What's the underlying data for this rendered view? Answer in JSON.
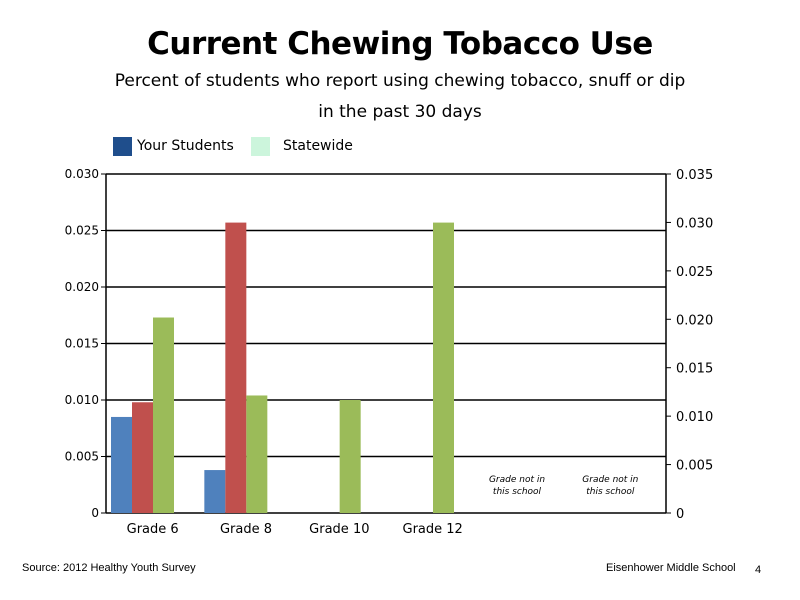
{
  "page": {
    "title": "Current Chewing Tobacco Use",
    "subtitle_line1": "Percent of students who report using chewing tobacco, snuff or dip",
    "subtitle_line2": "in the past 30 days",
    "source": "Source: 2012 Healthy Youth Survey",
    "school": "Eisenhower Middle  School",
    "page_number": "4"
  },
  "legend": [
    {
      "label": "Your Students",
      "color": "#1f4e8c"
    },
    {
      "label": "Statewide",
      "color": "#ccf5dc"
    }
  ],
  "chart_data": {
    "type": "bar",
    "categories": [
      "Grade 6",
      "Grade 8",
      "Grade 10",
      "Grade 12"
    ],
    "series": [
      {
        "values": [
          0.0085,
          0.0038,
          null,
          null
        ],
        "color": "#4f81bd"
      },
      {
        "values": [
          0.0098,
          0.0257,
          null,
          null
        ],
        "color": "#c0504d"
      },
      {
        "values": [
          0.0173,
          0.0104,
          0.01,
          0.0257
        ],
        "color": "#9bbb59"
      }
    ],
    "left_axis": {
      "ylim": [
        0,
        0.03
      ],
      "tick_labels": [
        "0",
        "0.005",
        "0.010",
        "0.015",
        "0.020",
        "0.025",
        "0.030"
      ]
    },
    "right_axis": {
      "ylim": [
        0,
        0.035
      ],
      "tick_labels": [
        "0",
        "0.005",
        "0.010",
        "0.015",
        "0.020",
        "0.025",
        "0.030",
        "0.035"
      ]
    },
    "grid": true,
    "annotations": [
      {
        "line1": "Grade not in",
        "line2": "this school"
      },
      {
        "line1": "Grade not in",
        "line2": "this school"
      }
    ]
  }
}
